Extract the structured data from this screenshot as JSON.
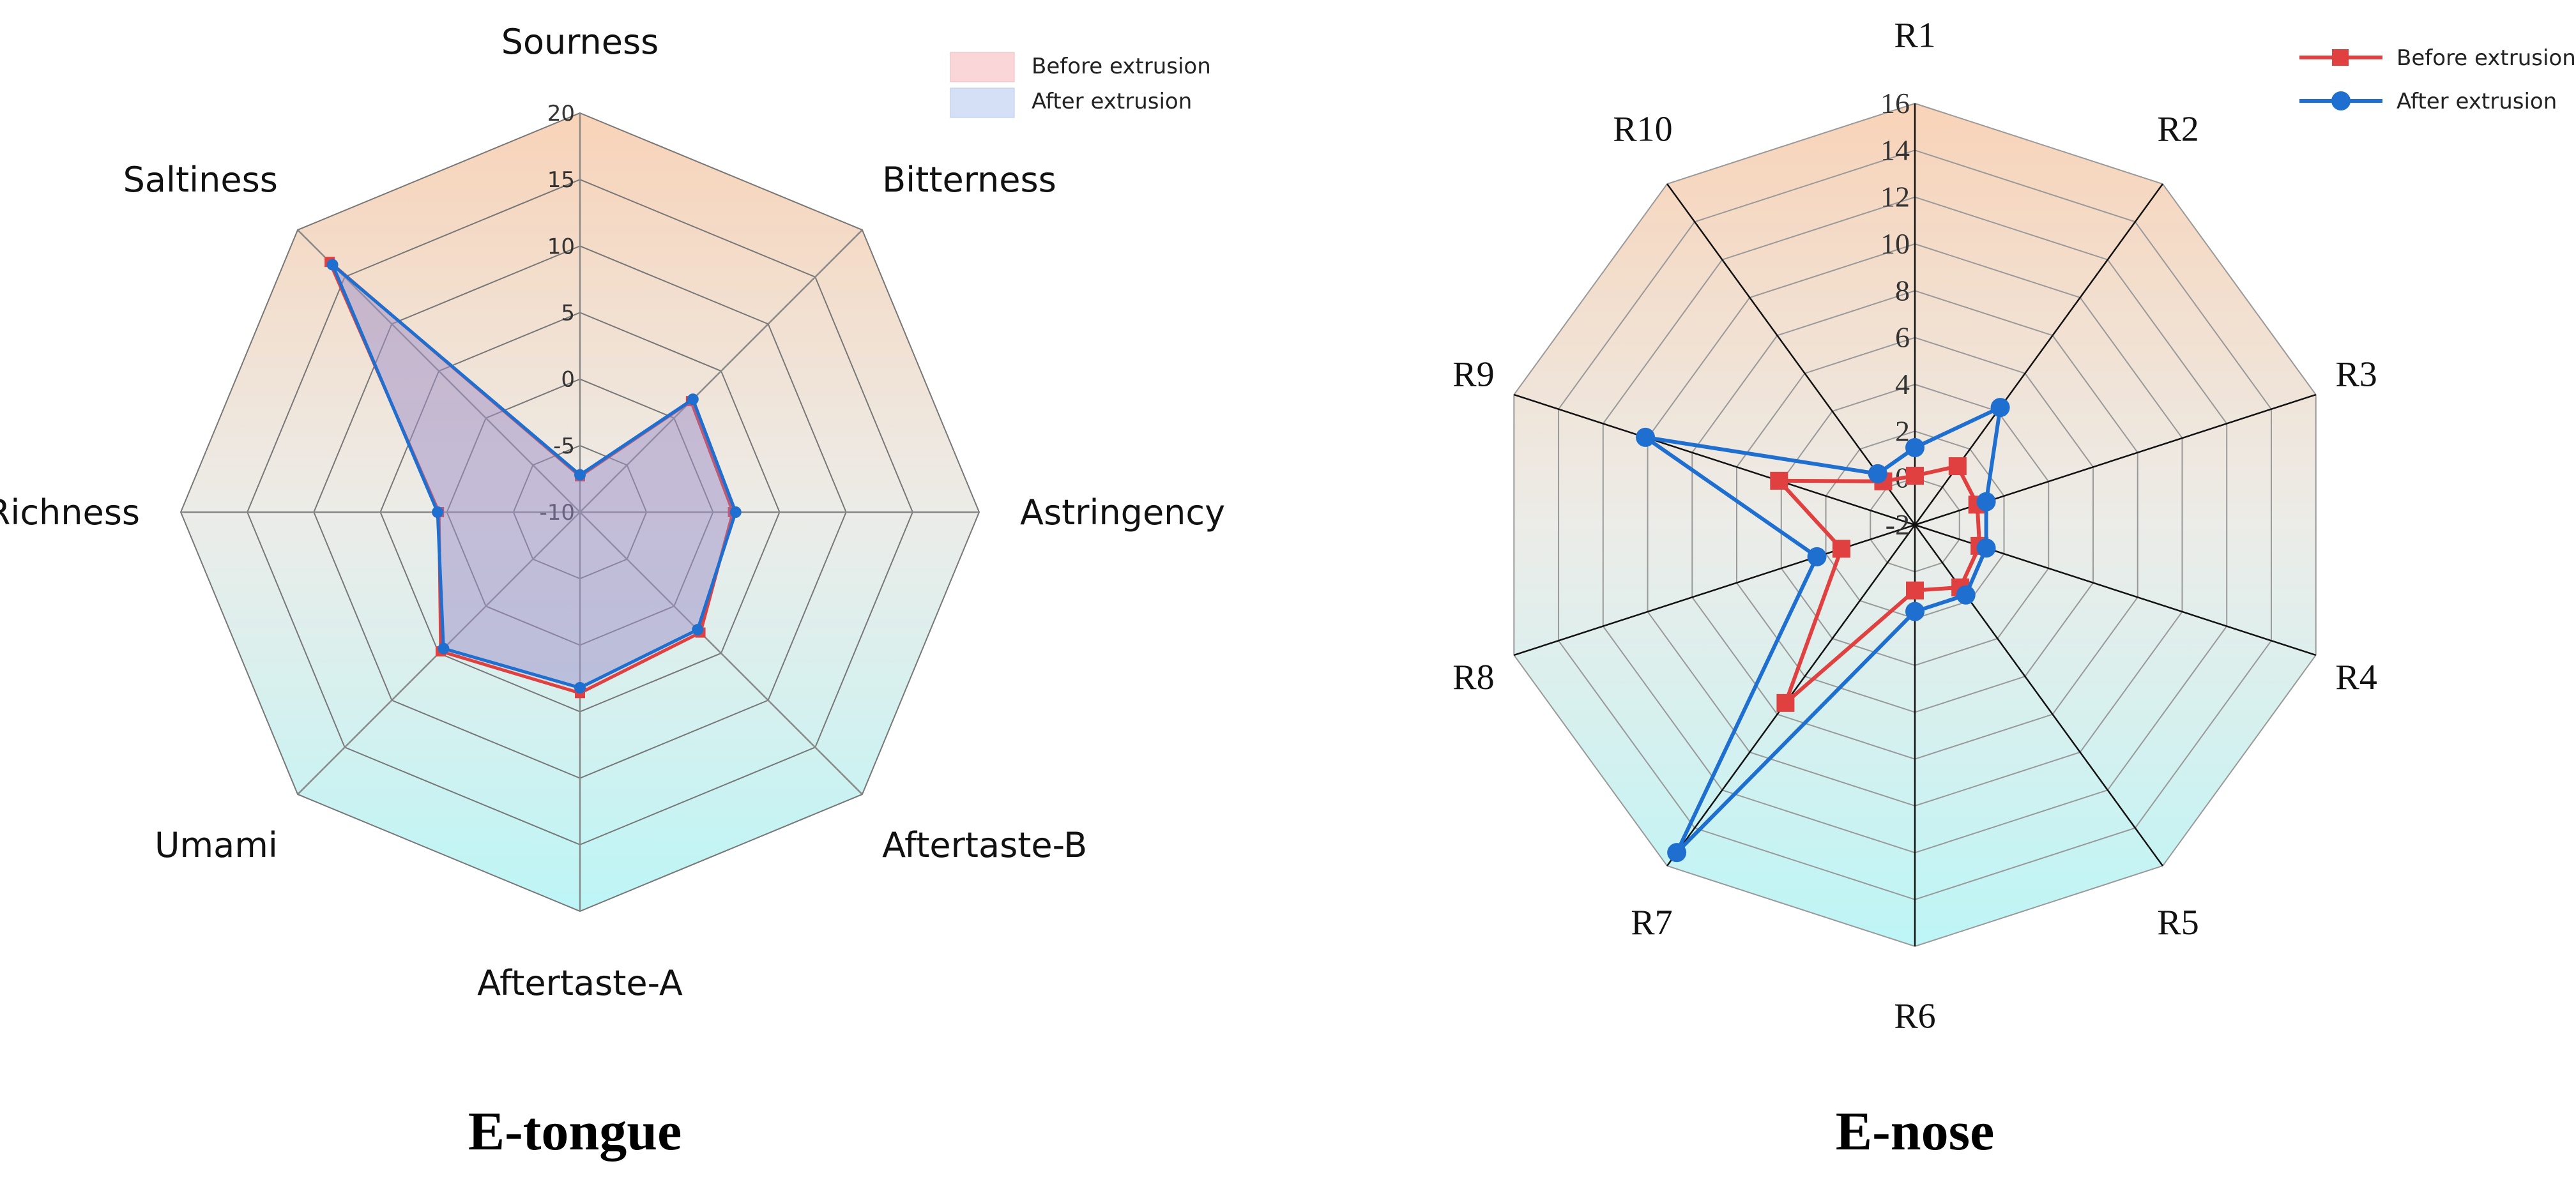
{
  "colors": {
    "before": "#e0403f",
    "after": "#1f6fd0",
    "gradient_top": "#f8d3b8",
    "gradient_mid": "#ecece8",
    "gradient_bottom": "#bdf5f6",
    "grid": "#555555"
  },
  "chart_data": [
    {
      "type": "radar",
      "title": "E-tongue",
      "axes": [
        "Sourness",
        "Bitterness",
        "Astringency",
        "Aftertaste-B",
        "Aftertaste-A",
        "Umami",
        "Richness",
        "Saltiness"
      ],
      "rlim": [
        -10,
        20
      ],
      "ticks": [
        "-10",
        "-5",
        "0",
        "5",
        "10",
        "15",
        "20"
      ],
      "tick_values": [
        -10,
        -5,
        0,
        5,
        10,
        15,
        20
      ],
      "legend": {
        "position": "top-right",
        "style": "fill",
        "before_label": "Before extrusion",
        "after_label": "After extrusion"
      },
      "series": [
        {
          "name": "Before extrusion",
          "marker": "square",
          "values": [
            -7.3,
            1.8,
            1.5,
            2.8,
            3.6,
            4.8,
            0.6,
            16.6
          ]
        },
        {
          "name": "After extrusion",
          "marker": "circle",
          "values": [
            -7.2,
            2.0,
            1.7,
            2.5,
            3.2,
            4.5,
            0.7,
            16.3
          ]
        }
      ]
    },
    {
      "type": "radar",
      "title": "E-nose",
      "axes": [
        "R1",
        "R2",
        "R3",
        "R4",
        "R5",
        "R6",
        "R7",
        "R8",
        "R9",
        "R10"
      ],
      "rlim": [
        -2,
        16
      ],
      "ticks": [
        "-2",
        "0",
        "2",
        "4",
        "6",
        "8",
        "10",
        "12",
        "14",
        "16"
      ],
      "tick_values": [
        -2,
        0,
        2,
        4,
        6,
        8,
        10,
        12,
        14,
        16
      ],
      "legend": {
        "position": "top-right",
        "style": "line",
        "before_label": "Before extrusion",
        "after_label": "After extrusion"
      },
      "series": [
        {
          "name": "Before extrusion",
          "marker": "square",
          "values": [
            0.1,
            1.1,
            0.8,
            0.9,
            1.3,
            0.8,
            7.4,
            1.3,
            4.1,
            0.3
          ]
        },
        {
          "name": "After extrusion",
          "marker": "circle",
          "values": [
            1.3,
            4.2,
            1.2,
            1.2,
            1.7,
            1.7,
            15.3,
            2.4,
            10.1,
            0.7
          ]
        }
      ]
    }
  ]
}
